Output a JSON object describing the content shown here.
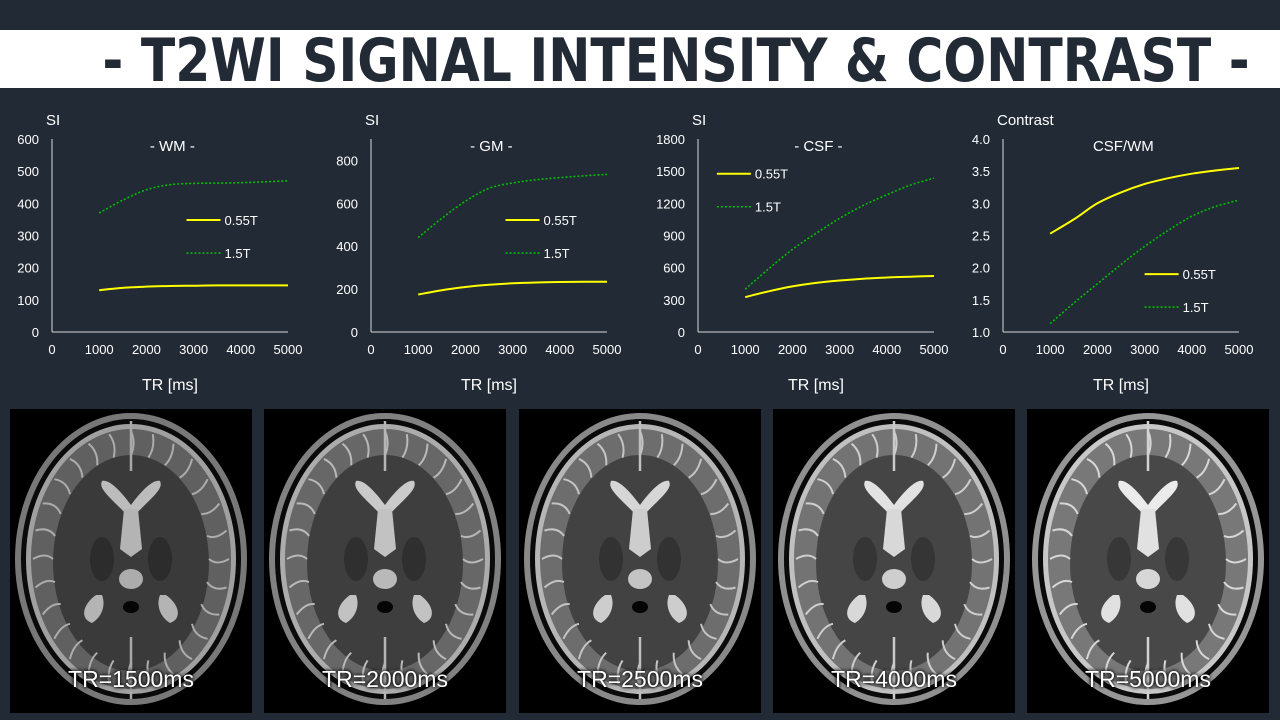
{
  "banner": {
    "title": "- T2WI SIGNAL INTENSITY & CONTRAST -"
  },
  "colors": {
    "background": "#222a35",
    "banner": "#ffffff",
    "series_055T": "#ffff00",
    "series_15T": "#00c000"
  },
  "chart_data": [
    {
      "type": "line",
      "title": "- WM -",
      "ylabel": "SI",
      "xlabel": "TR [ms]",
      "xlim": [
        0,
        5000
      ],
      "ylim": [
        0,
        600
      ],
      "xticks": [
        0,
        1000,
        2000,
        3000,
        4000,
        5000
      ],
      "yticks": [
        0,
        100,
        200,
        300,
        400,
        500,
        600
      ],
      "ytick_labels": [
        "0",
        "100",
        "200",
        "300",
        "400",
        "500",
        "600"
      ],
      "grid": false,
      "legend_position": "right",
      "series": [
        {
          "name": "0.55T",
          "style": "solid",
          "x": [
            1000,
            1500,
            2000,
            2500,
            3000,
            3500,
            4000,
            4500,
            5000
          ],
          "y": [
            130,
            137,
            141,
            143,
            144,
            145,
            145,
            145,
            145
          ]
        },
        {
          "name": "1.5T",
          "style": "dotted",
          "x": [
            1000,
            1500,
            2000,
            2500,
            3000,
            3500,
            4000,
            4500,
            5000
          ],
          "y": [
            370,
            410,
            442,
            458,
            462,
            463,
            464,
            467,
            470
          ]
        }
      ]
    },
    {
      "type": "line",
      "title": "- GM -",
      "ylabel": "SI",
      "xlabel": "TR [ms]",
      "xlim": [
        0,
        5000
      ],
      "ylim": [
        0,
        900
      ],
      "xticks": [
        0,
        1000,
        2000,
        3000,
        4000,
        5000
      ],
      "yticks": [
        0,
        200,
        400,
        600,
        800
      ],
      "ytick_labels": [
        "0",
        "200",
        "400",
        "600",
        "800"
      ],
      "grid": false,
      "legend_position": "right",
      "series": [
        {
          "name": "0.55T",
          "style": "solid",
          "x": [
            1000,
            1500,
            2000,
            2500,
            3000,
            3500,
            4000,
            4500,
            5000
          ],
          "y": [
            175,
            195,
            210,
            220,
            227,
            231,
            233,
            234,
            234
          ]
        },
        {
          "name": "1.5T",
          "style": "dotted",
          "x": [
            1000,
            1500,
            2000,
            2500,
            3000,
            3500,
            4000,
            4500,
            5000
          ],
          "y": [
            440,
            530,
            610,
            670,
            695,
            710,
            720,
            728,
            735
          ]
        }
      ]
    },
    {
      "type": "line",
      "title": "- CSF -",
      "ylabel": "SI",
      "xlabel": "TR [ms]",
      "xlim": [
        0,
        5000
      ],
      "ylim": [
        0,
        1800
      ],
      "xticks": [
        0,
        1000,
        2000,
        3000,
        4000,
        5000
      ],
      "yticks": [
        0,
        300,
        600,
        900,
        1200,
        1500,
        1800
      ],
      "ytick_labels": [
        "0",
        "300",
        "600",
        "900",
        "1200",
        "1500",
        "1800"
      ],
      "grid": false,
      "legend_position": "top-left",
      "series": [
        {
          "name": "0.55T",
          "style": "solid",
          "x": [
            1000,
            1500,
            2000,
            2500,
            3000,
            3500,
            4000,
            4500,
            5000
          ],
          "y": [
            325,
            380,
            425,
            458,
            480,
            497,
            508,
            516,
            522
          ]
        },
        {
          "name": "1.5T",
          "style": "dotted",
          "x": [
            1000,
            1500,
            2000,
            2500,
            3000,
            3500,
            4000,
            4500,
            5000
          ],
          "y": [
            400,
            590,
            770,
            920,
            1060,
            1180,
            1280,
            1370,
            1435
          ]
        }
      ]
    },
    {
      "type": "line",
      "title": "CSF/WM",
      "ylabel": "Contrast",
      "xlabel": "TR [ms]",
      "xlim": [
        0,
        5000
      ],
      "ylim": [
        1.0,
        4.0
      ],
      "xticks": [
        0,
        1000,
        2000,
        3000,
        4000,
        5000
      ],
      "yticks": [
        1.0,
        1.5,
        2.0,
        2.5,
        3.0,
        3.5,
        4.0
      ],
      "ytick_labels": [
        "1.0",
        "1.5",
        "2.0",
        "2.5",
        "3.0",
        "3.5",
        "4.0"
      ],
      "grid": false,
      "legend_position": "bottom-right",
      "series": [
        {
          "name": "0.55T",
          "style": "solid",
          "x": [
            1000,
            1500,
            2000,
            2500,
            3000,
            3500,
            4000,
            4500,
            5000
          ],
          "y": [
            2.53,
            2.75,
            3.0,
            3.17,
            3.3,
            3.39,
            3.46,
            3.51,
            3.55
          ]
        },
        {
          "name": "1.5T",
          "style": "dotted",
          "x": [
            1000,
            1500,
            2000,
            2500,
            3000,
            3500,
            4000,
            4500,
            5000
          ],
          "y": [
            1.13,
            1.45,
            1.75,
            2.05,
            2.33,
            2.58,
            2.8,
            2.95,
            3.05
          ]
        }
      ]
    }
  ],
  "scans": [
    {
      "caption": "TR=1500ms",
      "brightness": 0.8
    },
    {
      "caption": "TR=2000ms",
      "brightness": 0.86
    },
    {
      "caption": "TR=2500ms",
      "brightness": 0.91
    },
    {
      "caption": "TR=4000ms",
      "brightness": 0.96
    },
    {
      "caption": "TR=5000ms",
      "brightness": 1.0
    }
  ]
}
